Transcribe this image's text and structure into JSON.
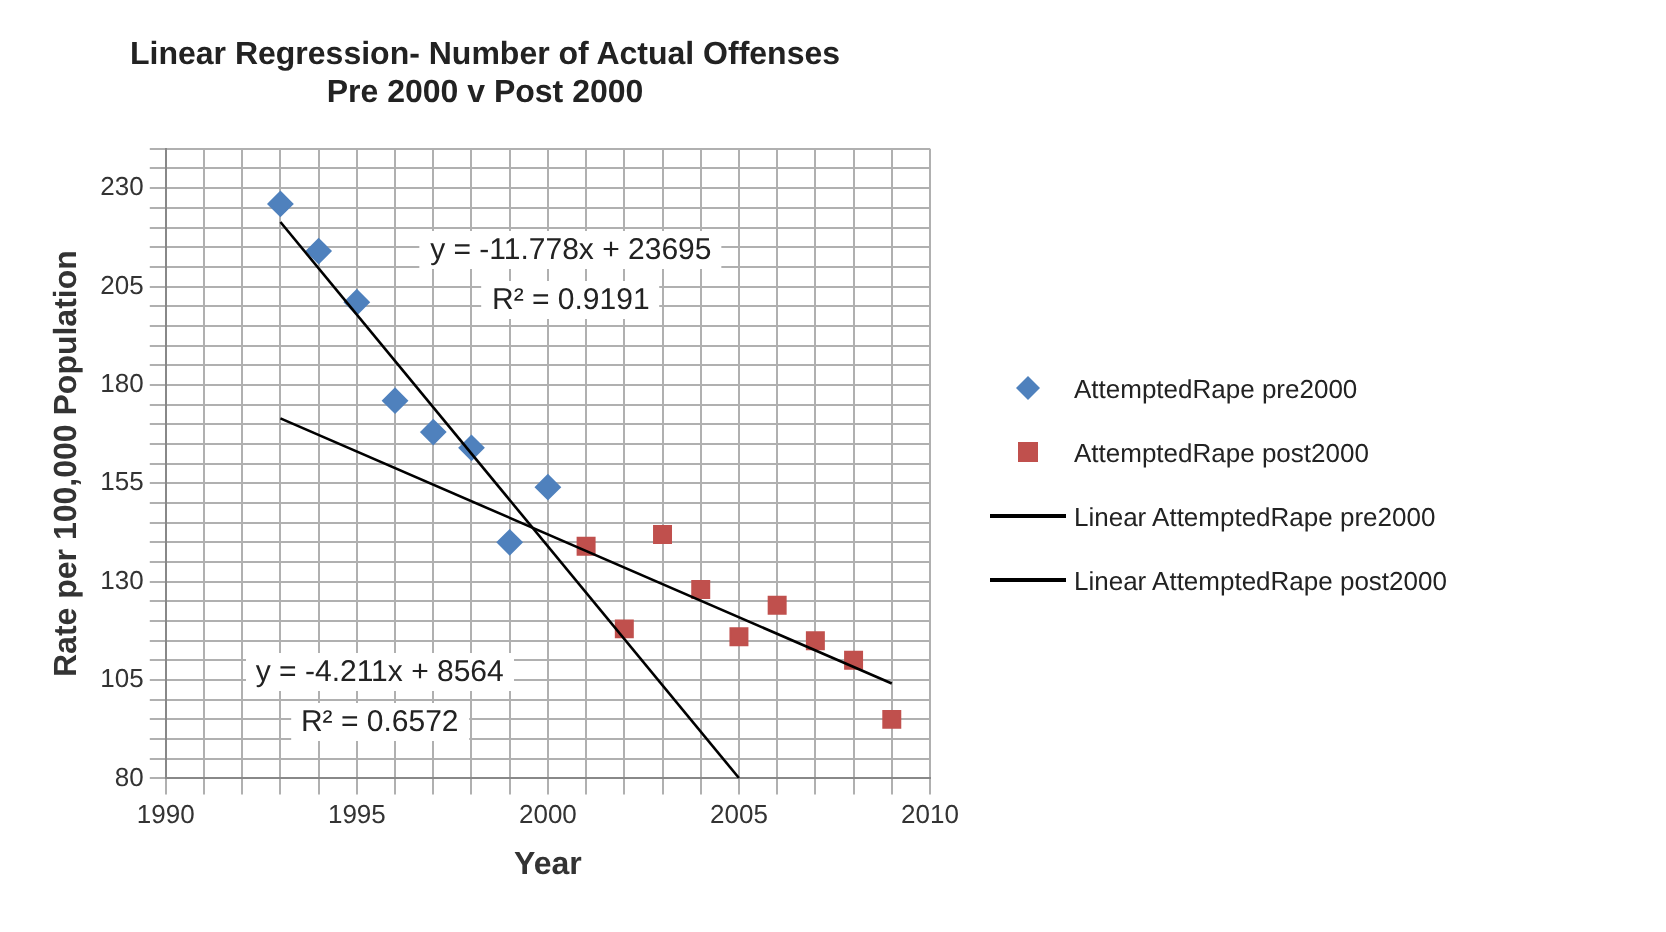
{
  "chart_data": {
    "type": "scatter",
    "title": "Linear Regression- Number of Actual Offenses\nPre 2000 v Post 2000",
    "xlabel": "Year",
    "ylabel": "Rate per 100,000 Population",
    "xlim": [
      1990,
      2010
    ],
    "ylim": [
      80,
      240
    ],
    "xticks": [
      1990,
      {
        "value": 1991,
        "label": null
      },
      {
        "value": 1992,
        "label": null
      },
      {
        "value": 1993,
        "label": null
      },
      {
        "value": 1994,
        "label": null
      },
      1995,
      {
        "value": 1996,
        "label": null
      },
      {
        "value": 1997,
        "label": null
      },
      {
        "value": 1998,
        "label": null
      },
      {
        "value": 1999,
        "label": null
      },
      2000,
      {
        "value": 2001,
        "label": null
      },
      {
        "value": 2002,
        "label": null
      },
      {
        "value": 2003,
        "label": null
      },
      {
        "value": 2004,
        "label": null
      },
      2005,
      {
        "value": 2006,
        "label": null
      },
      {
        "value": 2007,
        "label": null
      },
      {
        "value": 2008,
        "label": null
      },
      {
        "value": 2009,
        "label": null
      },
      2010
    ],
    "yticks": [
      80,
      {
        "value": 85,
        "label": null
      },
      {
        "value": 90,
        "label": null
      },
      {
        "value": 95,
        "label": null
      },
      {
        "value": 100,
        "label": null
      },
      105,
      {
        "value": 110,
        "label": null
      },
      {
        "value": 115,
        "label": null
      },
      {
        "value": 120,
        "label": null
      },
      {
        "value": 125,
        "label": null
      },
      130,
      {
        "value": 135,
        "label": null
      },
      {
        "value": 140,
        "label": null
      },
      {
        "value": 145,
        "label": null
      },
      {
        "value": 150,
        "label": null
      },
      155,
      {
        "value": 160,
        "label": null
      },
      {
        "value": 165,
        "label": null
      },
      {
        "value": 170,
        "label": null
      },
      {
        "value": 175,
        "label": null
      },
      180,
      {
        "value": 185,
        "label": null
      },
      {
        "value": 190,
        "label": null
      },
      {
        "value": 195,
        "label": null
      },
      {
        "value": 200,
        "label": null
      },
      205,
      {
        "value": 210,
        "label": null
      },
      {
        "value": 215,
        "label": null
      },
      {
        "value": 220,
        "label": null
      },
      {
        "value": 225,
        "label": null
      },
      230,
      {
        "value": 235,
        "label": null
      },
      {
        "value": 240,
        "label": null
      }
    ],
    "grid": true,
    "legend": "right",
    "series": [
      {
        "name": "AttemptedRape pre2000",
        "marker": "diamond",
        "color": "#4f81bd",
        "x": [
          1993,
          1994,
          1995,
          1996,
          1997,
          1998,
          1999,
          2000
        ],
        "values": [
          226,
          214,
          201,
          176,
          168,
          164,
          140,
          154
        ]
      },
      {
        "name": "AttemptedRape post2000",
        "marker": "square",
        "color": "#c0504d",
        "x": [
          2001,
          2002,
          2003,
          2004,
          2005,
          2006,
          2007,
          2008,
          2009
        ],
        "values": [
          139,
          118,
          142,
          128,
          116,
          124,
          115,
          110,
          95
        ]
      },
      {
        "name": "Linear AttemptedRape pre2000",
        "type": "line",
        "marker": "none",
        "color": "#000000",
        "x": [
          1993,
          2005
        ],
        "values": [
          221.4,
          80.1
        ]
      },
      {
        "name": "Linear AttemptedRape post2000",
        "type": "line",
        "marker": "none",
        "color": "#000000",
        "x": [
          1993,
          2009
        ],
        "values": [
          171.5,
          104.1
        ]
      }
    ],
    "annotations": [
      "y = -11.778x + 23695",
      "R² = 0.9191",
      "y = -4.211x + 8564",
      "R² = 0.6572"
    ]
  }
}
